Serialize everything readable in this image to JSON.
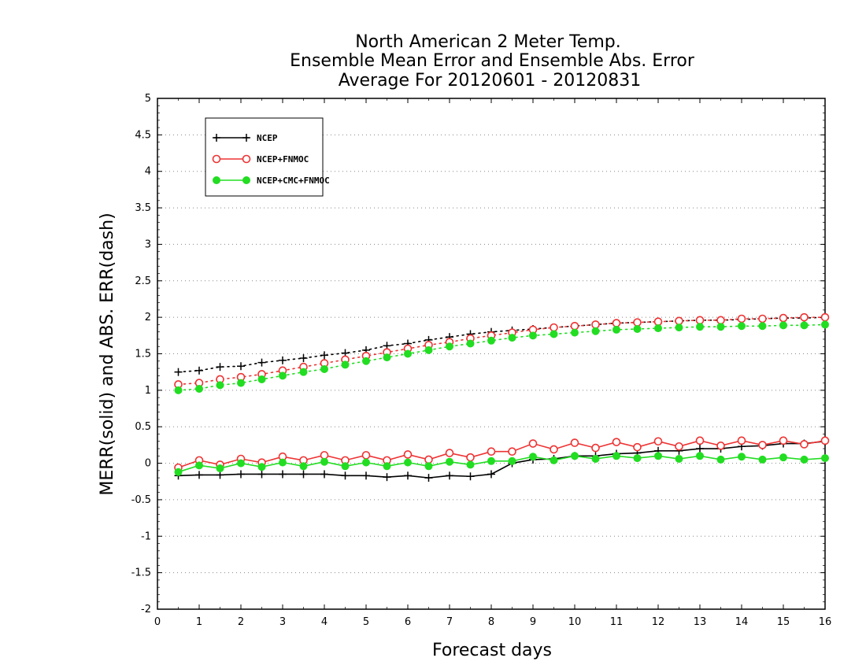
{
  "chart_data": {
    "type": "line",
    "title": [
      "North American 2 Meter Temp.",
      "Ensemble Mean Error and Ensemble Abs. Error",
      "Average For 20120601 - 20120831"
    ],
    "xlabel": "Forecast days",
    "ylabel": "MERR(solid) and ABS. ERR(dash)",
    "xlim": [
      0,
      16
    ],
    "ylim": [
      -2,
      5
    ],
    "x_ticks": [
      "0",
      "1",
      "2",
      "3",
      "4",
      "5",
      "6",
      "7",
      "8",
      "9",
      "10",
      "11",
      "12",
      "13",
      "14",
      "15",
      "16"
    ],
    "y_ticks": [
      "5",
      "4.5",
      "4",
      "3.5",
      "3",
      "2.5",
      "2",
      "1.5",
      "1",
      "0.5",
      "0",
      "-0.5",
      "-1",
      "-1.5",
      "-2"
    ],
    "grid": true,
    "legend_position": "top-left",
    "x": [
      0.5,
      1,
      1.5,
      2,
      2.5,
      3,
      3.5,
      4,
      4.5,
      5,
      5.5,
      6,
      6.5,
      7,
      7.5,
      8,
      8.5,
      9,
      9.5,
      10,
      10.5,
      11,
      11.5,
      12,
      12.5,
      13,
      13.5,
      14,
      14.5,
      15,
      15.5,
      16
    ],
    "series": [
      {
        "name": "NCEP",
        "color": "#000000",
        "marker": "plus",
        "merr": [
          -0.17,
          -0.16,
          -0.16,
          -0.15,
          -0.15,
          -0.15,
          -0.15,
          -0.15,
          -0.17,
          -0.17,
          -0.19,
          -0.17,
          -0.2,
          -0.17,
          -0.18,
          -0.15,
          0.0,
          0.05,
          0.06,
          0.1,
          0.1,
          0.13,
          0.14,
          0.17,
          0.17,
          0.2,
          0.2,
          0.23,
          0.24,
          0.27,
          0.27,
          0.3
        ],
        "abs_err": [
          1.25,
          1.27,
          1.32,
          1.33,
          1.38,
          1.41,
          1.44,
          1.48,
          1.51,
          1.55,
          1.61,
          1.64,
          1.69,
          1.73,
          1.77,
          1.8,
          1.82,
          1.84,
          1.86,
          1.88,
          1.9,
          1.92,
          1.93,
          1.94,
          1.95,
          1.96,
          1.96,
          1.97,
          1.98,
          1.99,
          1.99,
          2.0
        ]
      },
      {
        "name": "NCEP+FNMOC",
        "color": "#ee3333",
        "marker": "open-circle",
        "merr": [
          -0.06,
          0.04,
          -0.02,
          0.06,
          0.01,
          0.09,
          0.04,
          0.11,
          0.04,
          0.11,
          0.04,
          0.12,
          0.05,
          0.14,
          0.08,
          0.16,
          0.16,
          0.27,
          0.19,
          0.28,
          0.21,
          0.29,
          0.22,
          0.3,
          0.23,
          0.31,
          0.24,
          0.31,
          0.25,
          0.31,
          0.26,
          0.31
        ],
        "abs_err": [
          1.08,
          1.1,
          1.15,
          1.18,
          1.22,
          1.27,
          1.32,
          1.37,
          1.42,
          1.47,
          1.52,
          1.57,
          1.62,
          1.66,
          1.71,
          1.75,
          1.79,
          1.83,
          1.86,
          1.88,
          1.9,
          1.92,
          1.93,
          1.94,
          1.95,
          1.96,
          1.96,
          1.98,
          1.98,
          1.99,
          2.0,
          2.0
        ]
      },
      {
        "name": "NCEP+CMC+FNMOC",
        "color": "#22dd22",
        "marker": "filled-circle",
        "merr": [
          -0.12,
          -0.03,
          -0.07,
          0.0,
          -0.05,
          0.01,
          -0.04,
          0.02,
          -0.04,
          0.01,
          -0.04,
          0.01,
          -0.04,
          0.02,
          -0.02,
          0.03,
          0.03,
          0.09,
          0.04,
          0.1,
          0.06,
          0.1,
          0.07,
          0.1,
          0.06,
          0.1,
          0.05,
          0.09,
          0.05,
          0.08,
          0.05,
          0.07
        ],
        "abs_err": [
          1.0,
          1.02,
          1.07,
          1.1,
          1.15,
          1.2,
          1.25,
          1.29,
          1.35,
          1.4,
          1.45,
          1.5,
          1.55,
          1.6,
          1.64,
          1.68,
          1.72,
          1.75,
          1.77,
          1.79,
          1.81,
          1.83,
          1.84,
          1.85,
          1.86,
          1.87,
          1.87,
          1.88,
          1.88,
          1.89,
          1.89,
          1.9
        ]
      }
    ]
  }
}
